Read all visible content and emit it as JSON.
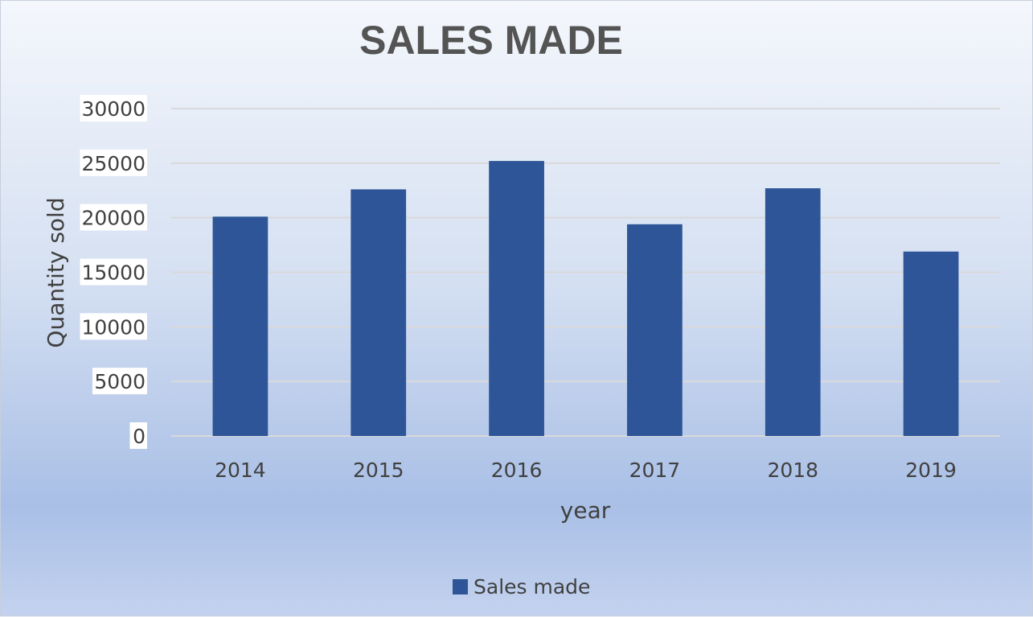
{
  "chart_data": {
    "type": "bar",
    "title": "SALES MADE",
    "xlabel": "year",
    "ylabel": "Quantity sold",
    "categories": [
      "2014",
      "2015",
      "2016",
      "2017",
      "2018",
      "2019"
    ],
    "series": [
      {
        "name": "Sales made",
        "values": [
          20100,
          22600,
          25200,
          19400,
          22700,
          16900
        ],
        "color": "#2e5597"
      }
    ],
    "ylim": [
      0,
      30000
    ],
    "yticks": [
      "0",
      "5000",
      "10000",
      "15000",
      "20000",
      "25000",
      "30000"
    ],
    "grid": true,
    "legend_position": "bottom"
  }
}
